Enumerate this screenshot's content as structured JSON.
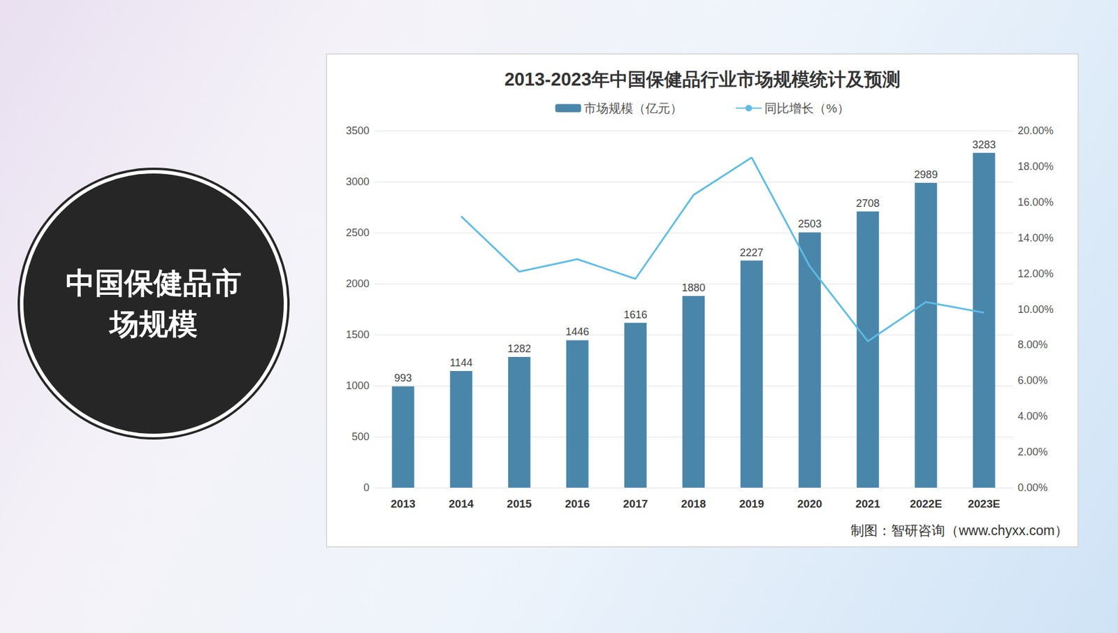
{
  "slide": {
    "heading": "中国保健品市场规模"
  },
  "chart_data": {
    "type": "bar",
    "title": "2013-2023年中国保健品行业市场规模统计及预测",
    "source": "制图：智研咨询（www.chyxx.com）",
    "categories": [
      "2013",
      "2014",
      "2015",
      "2016",
      "2017",
      "2018",
      "2019",
      "2020",
      "2021",
      "2022E",
      "2023E"
    ],
    "series": [
      {
        "name": "市场规模（亿元）",
        "type": "bar",
        "color": "#4a86aa",
        "data_labels": true,
        "values": [
          993,
          1144,
          1282,
          1446,
          1616,
          1880,
          2227,
          2503,
          2708,
          2989,
          3283
        ]
      },
      {
        "name": "同比增长（%）",
        "type": "line",
        "color": "#5cbde6",
        "axis": "y2",
        "marker": "none",
        "line_style": "solid",
        "values": [
          null,
          15.2,
          12.1,
          12.8,
          11.7,
          16.4,
          18.5,
          12.4,
          8.2,
          10.4,
          9.8
        ]
      }
    ],
    "ylim": [
      0,
      3500
    ],
    "yticks": [
      0,
      500,
      1000,
      1500,
      2000,
      2500,
      3000,
      3500
    ],
    "y2lim": [
      0,
      20
    ],
    "y2ticks": [
      {
        "value": 0,
        "label": "0.00%"
      },
      {
        "value": 2,
        "label": "2.00%"
      },
      {
        "value": 4,
        "label": "4.00%"
      },
      {
        "value": 6,
        "label": "6.00%"
      },
      {
        "value": 8,
        "label": "8.00%"
      },
      {
        "value": 10,
        "label": "10.00%"
      },
      {
        "value": 12,
        "label": "12.00%"
      },
      {
        "value": 14,
        "label": "14.00%"
      },
      {
        "value": 16,
        "label": "16.00%"
      },
      {
        "value": 18,
        "label": "18.00%"
      },
      {
        "value": 20,
        "label": "20.00%"
      }
    ],
    "grid": true,
    "legend": "top"
  }
}
